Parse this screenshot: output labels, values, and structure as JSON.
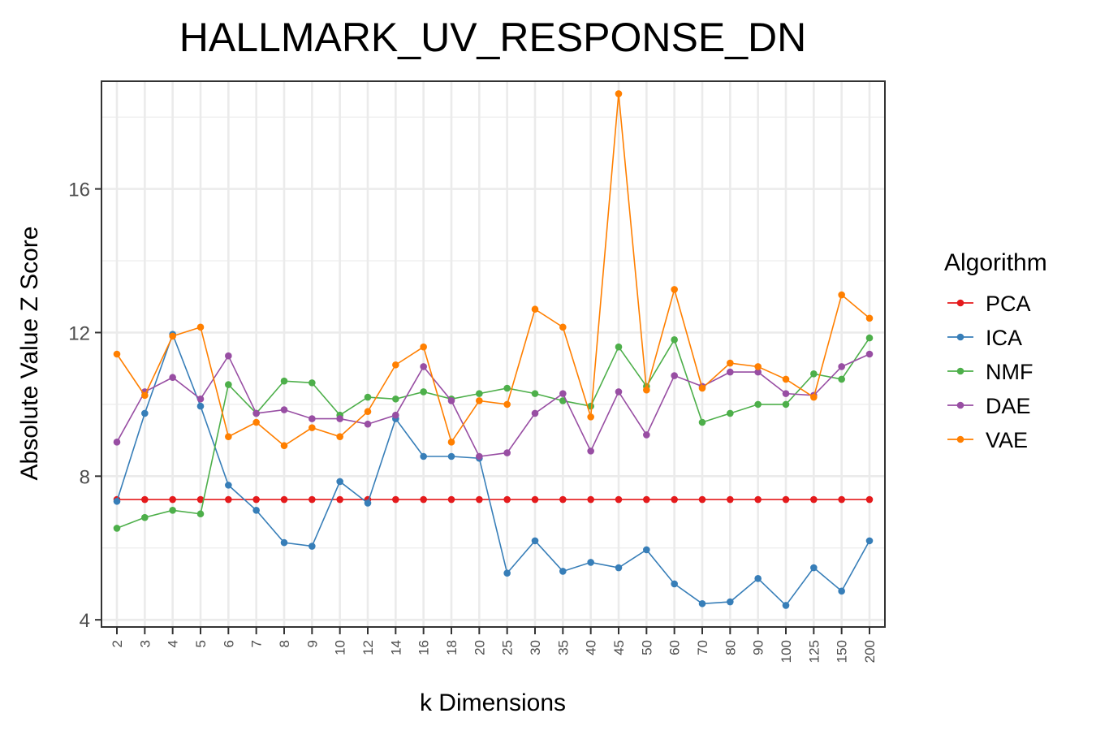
{
  "chart_data": {
    "type": "line",
    "title": "HALLMARK_UV_RESPONSE_DN",
    "xlabel": "k Dimensions",
    "ylabel": "Absolute Value Z Score",
    "ylim": [
      3.8,
      19.0
    ],
    "yticks": [
      4,
      8,
      12,
      16
    ],
    "grid": true,
    "legend_title": "Algorithm",
    "legend_position": "right",
    "x": [
      "2",
      "3",
      "4",
      "5",
      "6",
      "7",
      "8",
      "9",
      "10",
      "12",
      "14",
      "16",
      "18",
      "20",
      "25",
      "30",
      "35",
      "40",
      "45",
      "50",
      "60",
      "70",
      "80",
      "90",
      "100",
      "125",
      "150",
      "200"
    ],
    "series": [
      {
        "name": "PCA",
        "color": "#e41a1c",
        "values": [
          7.35,
          7.35,
          7.35,
          7.35,
          7.35,
          7.35,
          7.35,
          7.35,
          7.35,
          7.35,
          7.35,
          7.35,
          7.35,
          7.35,
          7.35,
          7.35,
          7.35,
          7.35,
          7.35,
          7.35,
          7.35,
          7.35,
          7.35,
          7.35,
          7.35,
          7.35,
          7.35,
          7.35
        ]
      },
      {
        "name": "ICA",
        "color": "#377eb8",
        "values": [
          7.3,
          9.75,
          11.95,
          9.95,
          7.75,
          7.05,
          6.15,
          6.05,
          7.85,
          7.25,
          9.6,
          8.55,
          8.55,
          8.5,
          5.3,
          6.2,
          5.35,
          5.6,
          5.45,
          5.95,
          5.0,
          4.45,
          4.5,
          5.15,
          4.4,
          5.45,
          4.8,
          6.2
        ]
      },
      {
        "name": "NMF",
        "color": "#4daf4a",
        "values": [
          6.55,
          6.85,
          7.05,
          6.95,
          10.55,
          9.75,
          10.65,
          10.6,
          9.7,
          10.2,
          10.15,
          10.35,
          10.15,
          10.3,
          10.45,
          10.3,
          10.1,
          9.95,
          11.6,
          10.5,
          11.8,
          9.5,
          9.75,
          10.0,
          10.0,
          10.85,
          10.7,
          11.85
        ]
      },
      {
        "name": "DAE",
        "color": "#984ea3",
        "values": [
          8.95,
          10.35,
          10.75,
          10.15,
          11.35,
          9.75,
          9.85,
          9.6,
          9.6,
          9.45,
          9.7,
          11.05,
          10.1,
          8.55,
          8.65,
          9.75,
          10.3,
          8.7,
          10.35,
          9.15,
          10.8,
          10.5,
          10.9,
          10.9,
          10.3,
          10.25,
          11.05,
          11.4
        ]
      },
      {
        "name": "VAE",
        "color": "#ff7f00",
        "values": [
          11.4,
          10.25,
          11.9,
          12.15,
          9.1,
          9.5,
          8.85,
          9.35,
          9.1,
          9.8,
          11.1,
          11.6,
          8.95,
          10.1,
          10.0,
          12.65,
          12.15,
          9.65,
          18.65,
          10.4,
          13.2,
          10.45,
          11.15,
          11.05,
          10.7,
          10.2,
          13.05,
          12.4
        ]
      }
    ]
  }
}
